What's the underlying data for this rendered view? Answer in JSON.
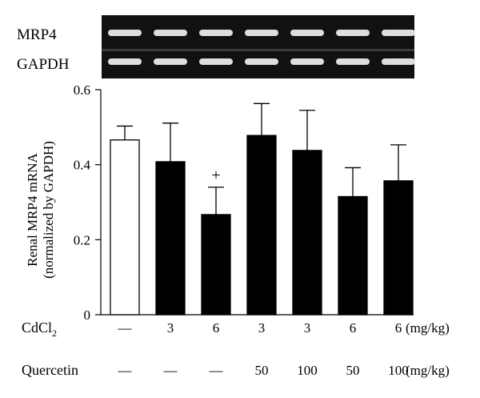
{
  "gel": {
    "rows": [
      {
        "label": "MRP4",
        "band_count": 7
      },
      {
        "label": "GAPDH",
        "band_count": 7
      }
    ]
  },
  "chart_data": {
    "type": "bar",
    "ylabel_line1": "Renal MRP4 mRNA",
    "ylabel_line2": "(normalized by GAPDH)",
    "ylim": [
      0,
      0.6
    ],
    "yticks": [
      0,
      0.2,
      0.4,
      0.6
    ],
    "ytick_labels": [
      "0",
      "0.2",
      "0.4",
      "0.6"
    ],
    "values": [
      0.466,
      0.408,
      0.267,
      0.478,
      0.438,
      0.315,
      0.357
    ],
    "errors": [
      0.037,
      0.103,
      0.073,
      0.085,
      0.107,
      0.077,
      0.096
    ],
    "fills": [
      "#ffffff",
      "#000000",
      "#000000",
      "#000000",
      "#000000",
      "#000000",
      "#000000"
    ],
    "annotations": [
      {
        "bar": 2,
        "text": "+"
      }
    ],
    "conditions": [
      {
        "label": "CdCl",
        "subscript": "2",
        "unit": "(mg/kg)",
        "values": [
          "—",
          "3",
          "6",
          "3",
          "3",
          "6",
          "6"
        ]
      },
      {
        "label": "Quercetin",
        "subscript": "",
        "unit": "(mg/kg)",
        "values": [
          "—",
          "—",
          "—",
          "50",
          "100",
          "50",
          "100"
        ]
      }
    ]
  }
}
